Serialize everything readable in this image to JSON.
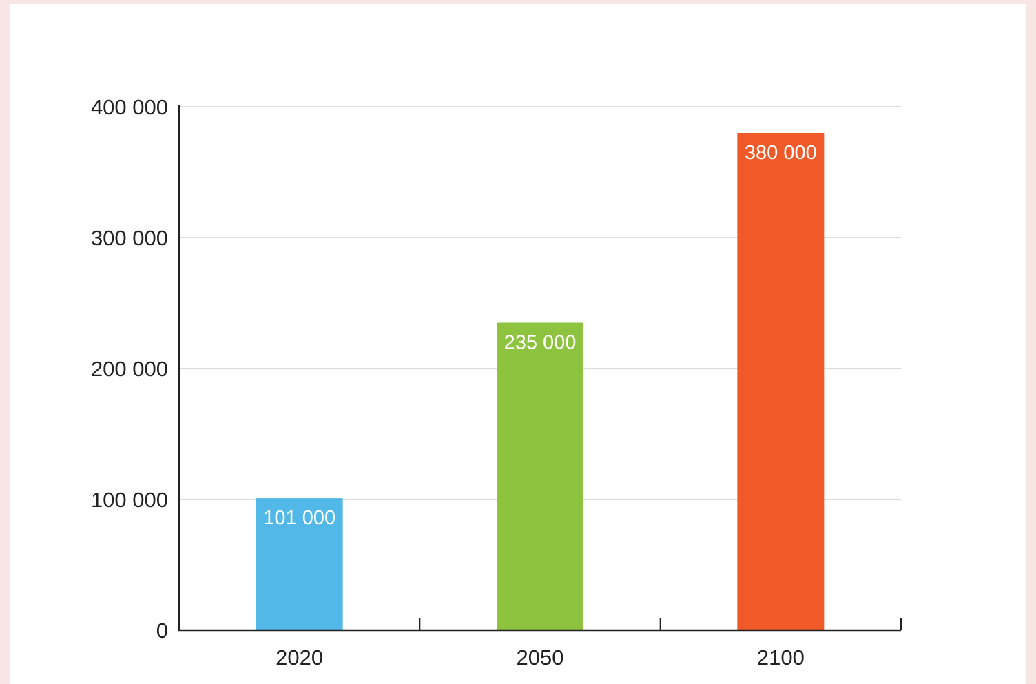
{
  "chart_data": {
    "type": "bar",
    "title": "",
    "xlabel": "",
    "ylabel": "",
    "categories": [
      "2020",
      "2050",
      "2100"
    ],
    "values": [
      101000,
      235000,
      380000
    ],
    "data_labels": [
      "101 000",
      "235 000",
      "380 000"
    ],
    "colors": [
      "#52b8e8",
      "#8dc33f",
      "#f05a28"
    ],
    "ylim": [
      0,
      400000
    ],
    "yticks": [
      0,
      100000,
      200000,
      300000,
      400000
    ],
    "ytick_labels": [
      "0",
      "100 000",
      "200 000",
      "300 000",
      "400 000"
    ],
    "grid": true,
    "legend": "none"
  }
}
